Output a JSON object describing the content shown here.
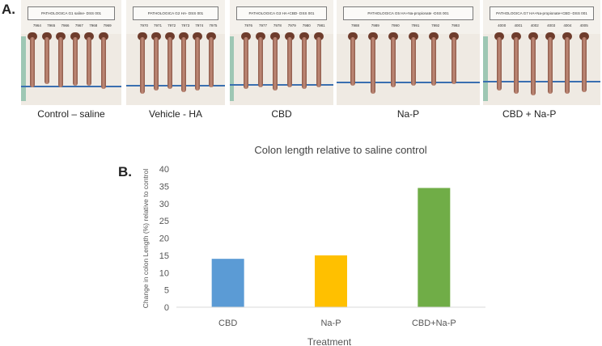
{
  "panel_a": {
    "letter": "A.",
    "photos": [
      {
        "label": "PATHOLOGICA G1 saline- DSS 001",
        "ids": [
          "7964",
          "7965",
          "7966",
          "7967",
          "7968",
          "7969"
        ],
        "caption": "Control – saline"
      },
      {
        "label": "PATHOLOGICA G2 HA- DSS 001",
        "ids": [
          "7970",
          "7971",
          "7972",
          "7973",
          "7974",
          "7975"
        ],
        "caption": "Vehicle - HA"
      },
      {
        "label": "PATHOLOGICA G3 HA+CBD- DSS 001",
        "ids": [
          "7976",
          "7977",
          "7978",
          "7979",
          "7980",
          "7981"
        ],
        "caption": "CBD"
      },
      {
        "label": "PATHOLOGICA G5 HA+Na-propionate -DSS 001",
        "ids": [
          "7988",
          "7989",
          "7990",
          "7991",
          "7992",
          "7993"
        ],
        "caption": "Na-P"
      },
      {
        "label": "PATHOLOGICA G7 HA+Na-propionate+CBD -DSS 001",
        "ids": [
          "4000",
          "4001",
          "4002",
          "4003",
          "4004",
          "4005"
        ],
        "caption": "CBD + Na-P"
      }
    ]
  },
  "panel_b": {
    "letter": "B."
  },
  "colors": {
    "CBD": "#5b9bd5",
    "Na-P": "#ffc000",
    "CBD+Na-P": "#70ad47",
    "axis": "#d9d9d9"
  },
  "chart_data": {
    "type": "bar",
    "title": "Colon length relative to saline control",
    "xlabel": "Treatment",
    "ylabel": "Change in colon Length (%) relative to control",
    "categories": [
      "CBD",
      "Na-P",
      "CBD+Na-P"
    ],
    "values": [
      14,
      15,
      34.5
    ],
    "ylim": [
      0,
      40
    ],
    "yticks": [
      0,
      5,
      10,
      15,
      20,
      25,
      30,
      35,
      40
    ],
    "grid": false,
    "legend": "none"
  }
}
